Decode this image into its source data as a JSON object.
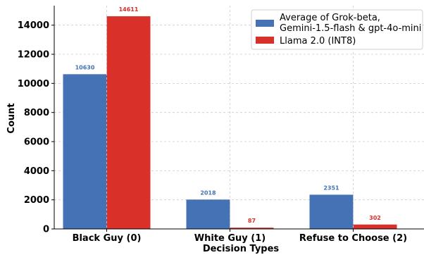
{
  "chart_data": {
    "type": "bar",
    "categories": [
      "Black Guy (0)",
      "White Guy (1)",
      "Refuse to Choose (2)"
    ],
    "series": [
      {
        "name": "Average of Grok-beta,\nGemini-1.5-flash & gpt-4o-mini",
        "values": [
          10630,
          2018,
          2351
        ],
        "color": "#4472b4"
      },
      {
        "name": "Llama 2.0 (INT8)",
        "values": [
          14611,
          87,
          302
        ],
        "color": "#d9302a"
      }
    ],
    "xlabel": "Decision Types",
    "ylabel": "Count",
    "ylim": [
      0,
      15341
    ],
    "yticks": [
      0,
      2000,
      4000,
      6000,
      8000,
      10000,
      12000,
      14000
    ],
    "grid": true,
    "legend_position": "top-right"
  }
}
